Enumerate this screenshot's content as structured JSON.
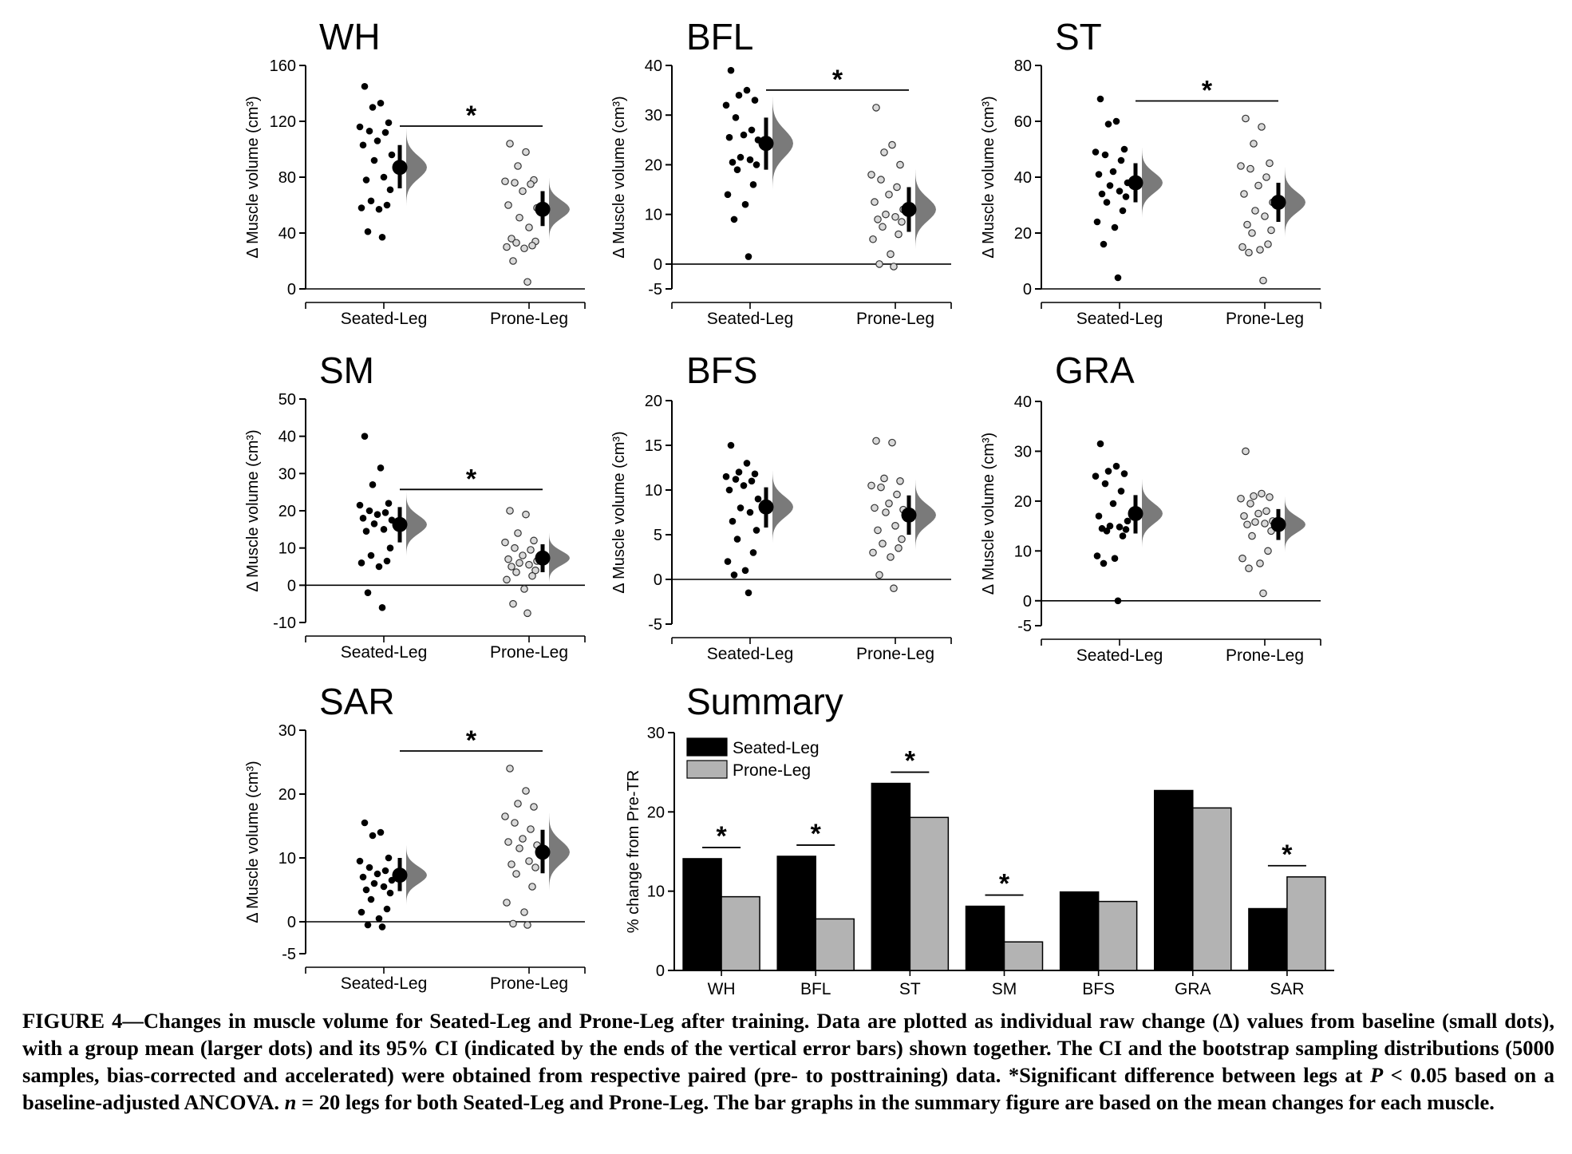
{
  "chart_data": [
    {
      "type": "scatter",
      "title": "WH",
      "ylabel": "Δ Muscle volume (cm³)",
      "categories": [
        "Seated-Leg",
        "Prone-Leg"
      ],
      "ylim": [
        0,
        160
      ],
      "yticks": [
        0,
        40,
        80,
        120,
        160
      ],
      "significant": true,
      "series": [
        {
          "name": "Seated-Leg",
          "values": [
            145,
            133,
            130,
            119,
            116,
            113,
            112,
            106,
            103,
            96,
            92,
            80,
            78,
            71,
            63,
            60,
            58,
            57,
            41,
            37
          ],
          "mean": 87,
          "ci": [
            72,
            103
          ]
        },
        {
          "name": "Prone-Leg",
          "values": [
            104,
            98,
            88,
            78,
            77,
            76,
            75,
            70,
            60,
            58,
            51,
            44,
            36,
            34,
            33,
            31,
            30,
            29,
            20,
            5
          ],
          "mean": 57,
          "ci": [
            45,
            70
          ]
        }
      ]
    },
    {
      "type": "scatter",
      "title": "BFL",
      "ylabel": "Δ Muscle volume (cm³)",
      "categories": [
        "Seated-Leg",
        "Prone-Leg"
      ],
      "ylim": [
        -5,
        40
      ],
      "yticks": [
        -5,
        0,
        10,
        20,
        30,
        40
      ],
      "significant": true,
      "series": [
        {
          "name": "Seated-Leg",
          "values": [
            39,
            35,
            34,
            33,
            32,
            29.5,
            27,
            26,
            25.5,
            25,
            21.5,
            21,
            20.5,
            20,
            19,
            16,
            14,
            12,
            9,
            1.5
          ],
          "mean": 24.3,
          "ci": [
            19,
            29.5
          ]
        },
        {
          "name": "Prone-Leg",
          "values": [
            31.5,
            24,
            22.5,
            20,
            18,
            17,
            15.5,
            14,
            12.5,
            11,
            10,
            9.5,
            9,
            8.5,
            7.5,
            6,
            5,
            2,
            0,
            -0.5
          ],
          "mean": 11,
          "ci": [
            6.5,
            15.5
          ]
        }
      ]
    },
    {
      "type": "scatter",
      "title": "ST",
      "ylabel": "Δ Muscle volume (cm³)",
      "categories": [
        "Seated-Leg",
        "Prone-Leg"
      ],
      "ylim": [
        0,
        80
      ],
      "yticks": [
        0,
        20,
        40,
        60,
        80
      ],
      "significant": true,
      "series": [
        {
          "name": "Seated-Leg",
          "values": [
            68,
            60,
            59,
            50,
            49,
            48,
            46,
            42,
            41,
            38,
            37,
            35,
            34,
            33,
            31,
            28,
            24,
            22,
            16,
            4
          ],
          "mean": 38,
          "ci": [
            31,
            45
          ]
        },
        {
          "name": "Prone-Leg",
          "values": [
            61,
            58,
            52,
            45,
            44,
            43,
            40,
            37,
            34,
            31,
            28,
            26,
            23,
            21,
            20,
            16,
            15,
            14,
            13,
            3
          ],
          "mean": 31,
          "ci": [
            24,
            38
          ]
        }
      ]
    },
    {
      "type": "scatter",
      "title": "SM",
      "ylabel": "Δ Muscle volume (cm³)",
      "categories": [
        "Seated-Leg",
        "Prone-Leg"
      ],
      "ylim": [
        -10,
        50
      ],
      "yticks": [
        -10,
        0,
        10,
        20,
        30,
        40,
        50
      ],
      "significant": true,
      "series": [
        {
          "name": "Seated-Leg",
          "values": [
            40,
            31.5,
            27,
            22,
            21.5,
            20,
            19.5,
            19,
            18,
            17.5,
            16.5,
            15,
            14.5,
            10,
            8,
            6.5,
            6,
            5,
            -2,
            -6
          ],
          "mean": 16.3,
          "ci": [
            11.5,
            21
          ]
        },
        {
          "name": "Prone-Leg",
          "values": [
            20,
            19,
            14,
            12,
            11.5,
            10,
            9.5,
            8,
            7,
            6.5,
            6,
            5.5,
            5,
            4,
            3.5,
            2.5,
            1.5,
            -1,
            -5,
            -7.5
          ],
          "mean": 7.3,
          "ci": [
            3.5,
            11
          ]
        }
      ]
    },
    {
      "type": "scatter",
      "title": "BFS",
      "ylabel": "Δ Muscle volume (cm³)",
      "categories": [
        "Seated-Leg",
        "Prone-Leg"
      ],
      "ylim": [
        -5,
        20
      ],
      "yticks": [
        -5,
        0,
        5,
        10,
        15,
        20
      ],
      "significant": false,
      "series": [
        {
          "name": "Seated-Leg",
          "values": [
            15,
            13,
            12,
            11.8,
            11.5,
            11.2,
            11,
            10.5,
            10,
            9,
            8,
            7.5,
            6.5,
            5.5,
            4.5,
            3,
            2,
            1,
            0.5,
            -1.5
          ],
          "mean": 8.1,
          "ci": [
            5.8,
            10.3
          ]
        },
        {
          "name": "Prone-Leg",
          "values": [
            15.5,
            15.3,
            11.3,
            11,
            10.5,
            10.3,
            9.5,
            8.5,
            8,
            7.8,
            7.5,
            6,
            5.5,
            4.5,
            4,
            3.5,
            3,
            2.5,
            0.5,
            -1
          ],
          "mean": 7.2,
          "ci": [
            5,
            9.4
          ]
        }
      ]
    },
    {
      "type": "scatter",
      "title": "GRA",
      "ylabel": "Δ Muscle volume (cm³)",
      "categories": [
        "Seated-Leg",
        "Prone-Leg"
      ],
      "ylim": [
        -5,
        40
      ],
      "yticks": [
        -5,
        0,
        10,
        20,
        30,
        40
      ],
      "significant": false,
      "series": [
        {
          "name": "Seated-Leg",
          "values": [
            31.5,
            27,
            26,
            25.5,
            25,
            23.5,
            22,
            19.5,
            17,
            16,
            15,
            14.8,
            14.5,
            14.3,
            14,
            13,
            9,
            8.5,
            7.5,
            0
          ],
          "mean": 17.5,
          "ci": [
            13.5,
            21.2
          ]
        },
        {
          "name": "Prone-Leg",
          "values": [
            30,
            21.5,
            21,
            20.8,
            20.5,
            19.5,
            18,
            17.5,
            17,
            16,
            15.8,
            15.5,
            15.3,
            14,
            13,
            10,
            8.5,
            7.5,
            6.5,
            1.5
          ],
          "mean": 15.3,
          "ci": [
            12.2,
            18.4
          ]
        }
      ]
    },
    {
      "type": "scatter",
      "title": "SAR",
      "ylabel": "Δ Muscle volume (cm³)",
      "categories": [
        "Seated-Leg",
        "Prone-Leg"
      ],
      "ylim": [
        -5,
        30
      ],
      "yticks": [
        -5,
        0,
        10,
        20,
        30
      ],
      "significant": true,
      "series": [
        {
          "name": "Seated-Leg",
          "values": [
            15.5,
            14,
            13.5,
            10,
            9.5,
            8.5,
            8,
            7.5,
            7,
            6.5,
            6,
            5.5,
            5,
            4.5,
            3.5,
            2,
            1.5,
            0.5,
            -0.5,
            -0.8
          ],
          "mean": 7.3,
          "ci": [
            4.8,
            10
          ]
        },
        {
          "name": "Prone-Leg",
          "values": [
            24,
            20.5,
            18.5,
            18,
            16.5,
            15.5,
            14.5,
            13,
            12.5,
            12,
            11.5,
            9.5,
            9,
            8.5,
            7.5,
            5.5,
            3,
            1.5,
            -0.3,
            -0.5
          ],
          "mean": 10.9,
          "ci": [
            7.6,
            14.4
          ]
        }
      ]
    },
    {
      "type": "bar",
      "title": "Summary",
      "ylabel": "% change from Pre-TR",
      "categories": [
        "WH",
        "BFL",
        "ST",
        "SM",
        "BFS",
        "GRA",
        "SAR"
      ],
      "ylim": [
        0,
        30
      ],
      "yticks": [
        0,
        10,
        20,
        30
      ],
      "legend": "top-left",
      "significant": [
        true,
        true,
        true,
        true,
        false,
        false,
        true
      ],
      "series": [
        {
          "name": "Seated-Leg",
          "color": "#000000",
          "values": [
            14.1,
            14.4,
            23.6,
            8.1,
            9.9,
            22.7,
            7.8
          ]
        },
        {
          "name": "Prone-Leg",
          "color": "#b3b3b3",
          "values": [
            9.3,
            6.5,
            19.3,
            3.6,
            8.7,
            20.5,
            11.8
          ]
        }
      ]
    }
  ],
  "marker": "*",
  "caption": {
    "p1": "FIGURE 4—Changes in muscle volume for Seated-Leg and Prone-Leg after training. Data are plotted as individual raw change (Δ) values from baseline (small dots), with a group mean (larger dots) and its 95% CI (indicated by the ends of the vertical error bars) shown together. The CI and the bootstrap sampling distributions (5000 samples, bias-corrected and accelerated) were obtained from respective paired (pre- to posttraining) data. *Significant difference between legs at ",
    "p_symbol": "P",
    "p2": " < 0.05 based on a baseline-adjusted ANCOVA. ",
    "n_symbol": "n",
    "p3": " = 20 legs for both Seated-Leg and Prone-Leg. The bar graphs in the summary figure are based on the mean changes for each muscle."
  }
}
